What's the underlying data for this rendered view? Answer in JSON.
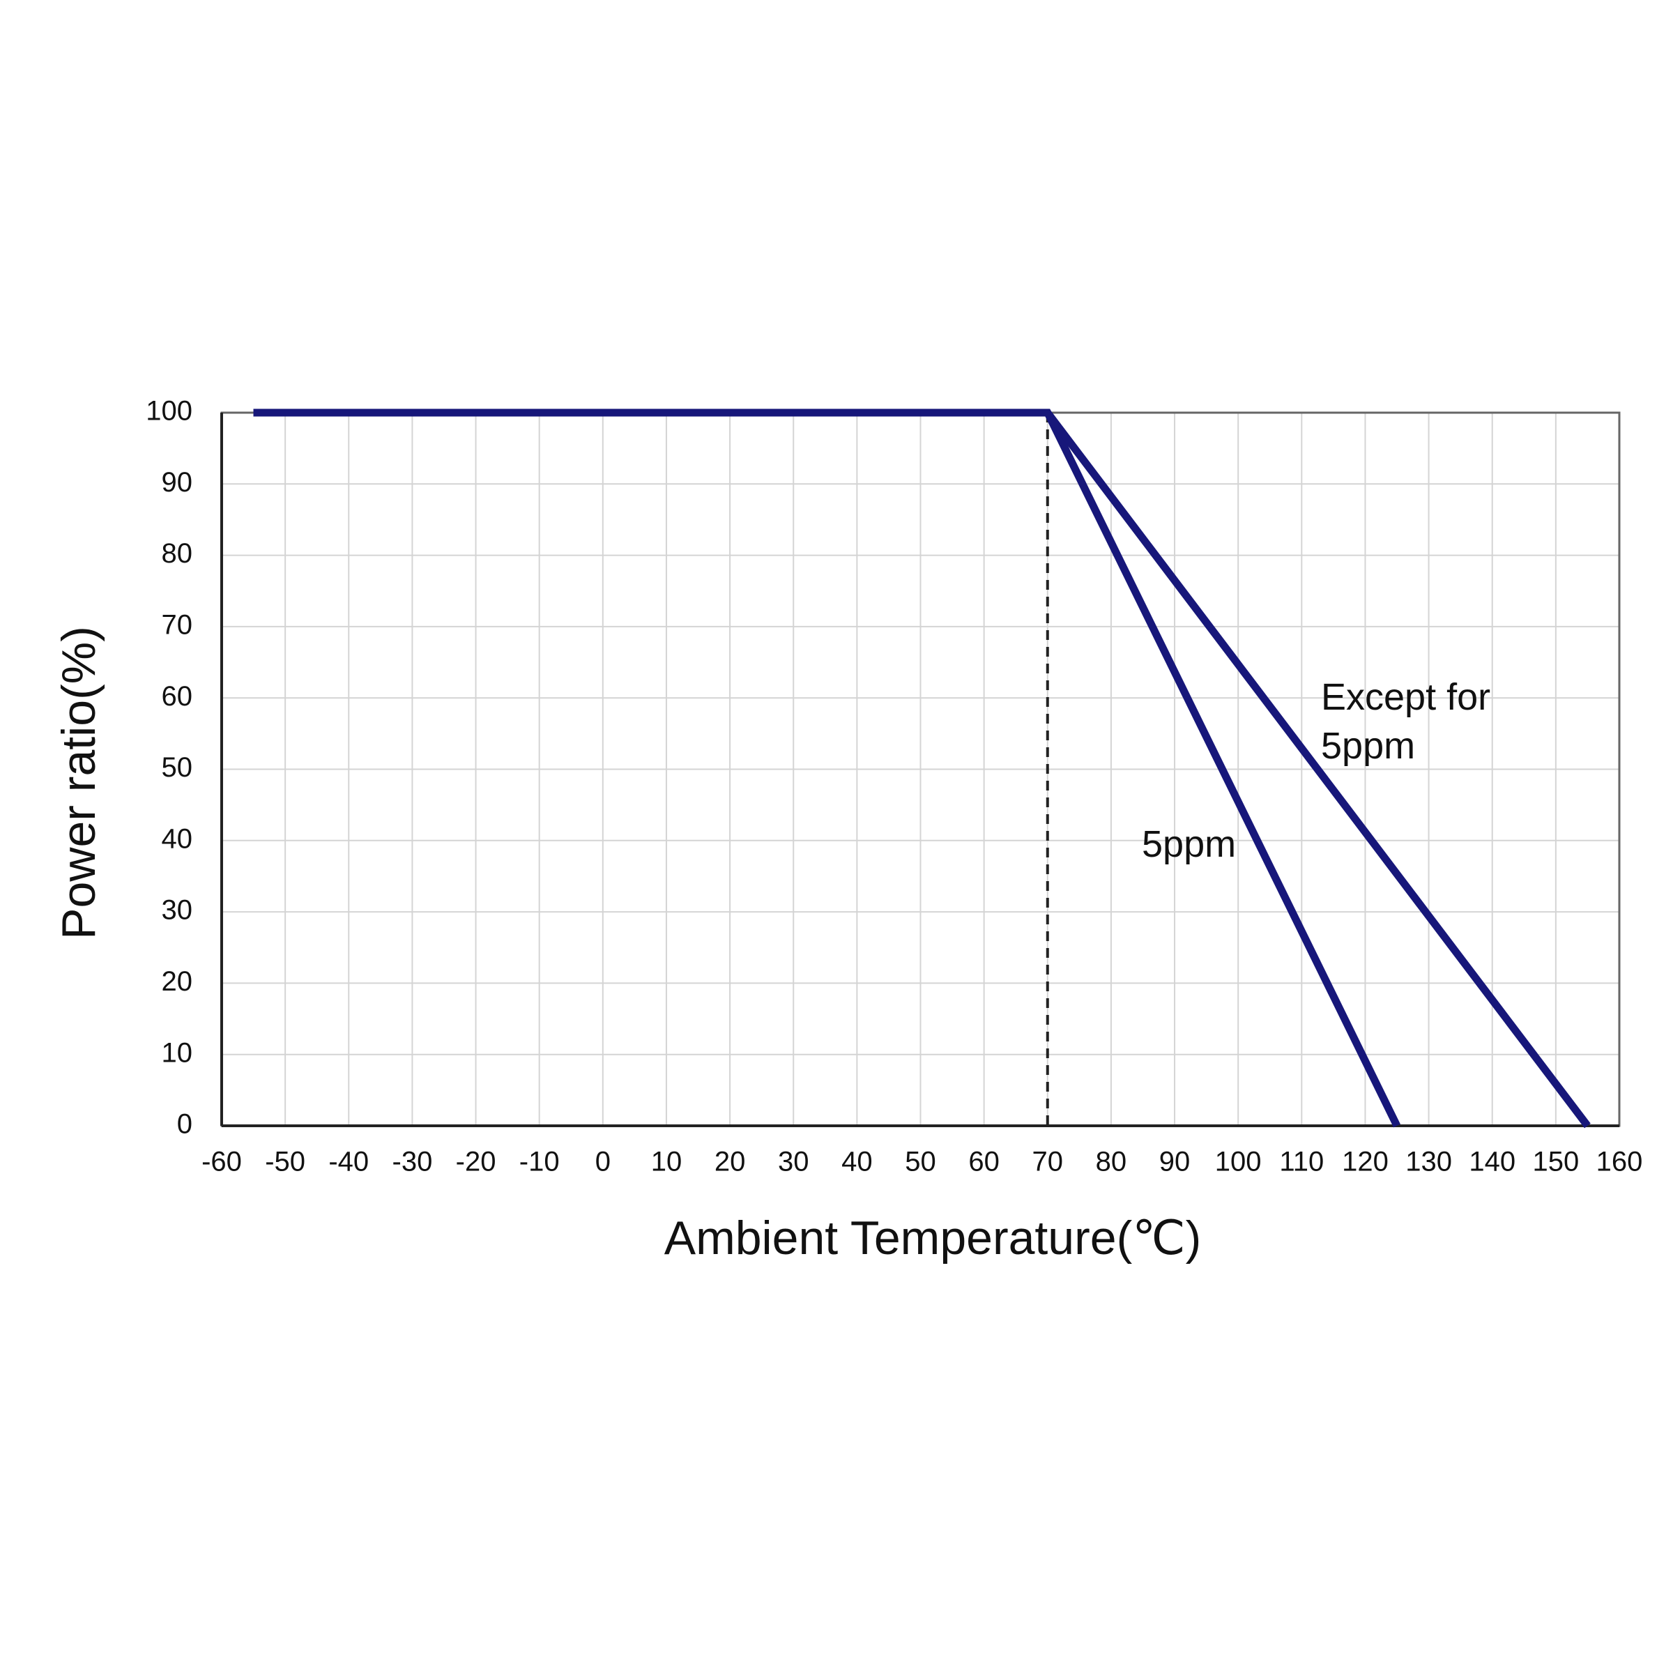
{
  "chart_data": {
    "type": "line",
    "x_label": "Ambient Temperature(℃)",
    "y_label": "Power ratio(%)",
    "series": [
      {
        "name": "5ppm",
        "color": "#17177a",
        "x": [
          -55,
          70,
          125
        ],
        "values": [
          100,
          100,
          0
        ]
      },
      {
        "name": "Except for 5ppm",
        "color": "#17177a",
        "x": [
          -55,
          70,
          155
        ],
        "values": [
          100,
          100,
          0
        ]
      }
    ],
    "reference_x": 70,
    "xlim": [
      -60,
      160
    ],
    "xticks": [
      -60,
      -50,
      -40,
      -30,
      -20,
      -10,
      0,
      10,
      20,
      30,
      40,
      50,
      60,
      70,
      80,
      90,
      100,
      110,
      120,
      130,
      140,
      150,
      160
    ],
    "ylim": [
      0,
      100
    ],
    "yticks": [
      0,
      10,
      20,
      30,
      40,
      50,
      60,
      70,
      80,
      90,
      100
    ],
    "grid": true
  }
}
